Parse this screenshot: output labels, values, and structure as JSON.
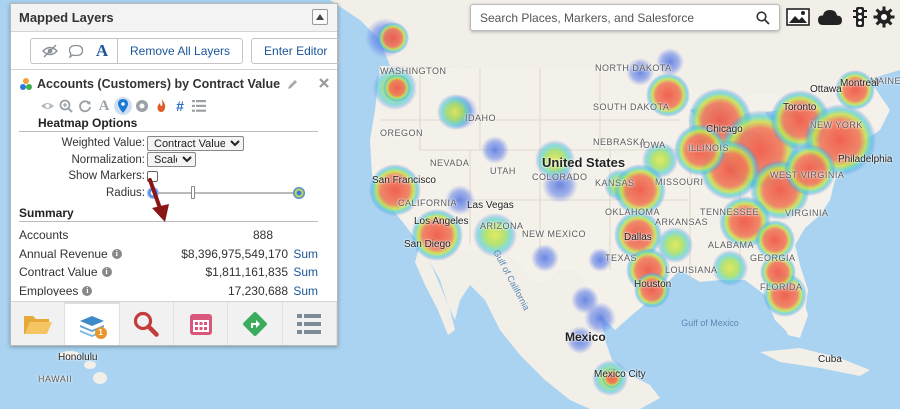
{
  "map": {
    "labels": {
      "united_states": "United States",
      "mexico": "Mexico",
      "washington": "WASHINGTON",
      "oregon": "OREGON",
      "idaho": "IDAHO",
      "north_dakota": "NORTH DAKOTA",
      "south_dakota": "SOUTH DAKOTA",
      "nebraska": "NEBRASKA",
      "nevada": "NEVADA",
      "utah": "UTAH",
      "colorado": "COLORADO",
      "california": "CALIFORNIA",
      "arizona": "ARIZONA",
      "new_mexico": "NEW MEXICO",
      "texas": "TEXAS",
      "oklahoma": "OKLAHOMA",
      "arkansas": "ARKANSAS",
      "missouri": "MISSOURI",
      "illinois": "ILLINOIS",
      "tennessee": "TENNESSEE",
      "alabama": "ALABAMA",
      "louisiana": "LOUISIANA",
      "georgia": "GEORGIA",
      "florida": "FLORIDA",
      "west_virginia": "WEST VIRGINIA",
      "virginia": "VIRGINIA",
      "new_york": "NEW YORK",
      "maine": "MAINE",
      "iowa": "IOWA",
      "kansas": "KANSAS",
      "san_francisco": "San Francisco",
      "los_angeles": "Los Angeles",
      "san_diego": "San Diego",
      "las_vegas": "Las Vegas",
      "dallas": "Dallas",
      "houston": "Houston",
      "chicago": "Chicago",
      "toronto": "Toronto",
      "montreal": "Montreal",
      "ottawa": "Ottawa",
      "philadelphia": "Philadelphia",
      "mexico_city": "Mexico City",
      "cuba": "Cuba",
      "honolulu": "Honolulu",
      "hawaii": "HAWAII",
      "gulf_california": "Gulf of California",
      "gulf_mexico": "Gulf of Mexico"
    }
  },
  "search": {
    "placeholder": "Search Places, Markers, and Salesforce"
  },
  "panel": {
    "title": "Mapped Layers",
    "toolbar": {
      "remove_all": "Remove All Layers",
      "enter_editor": "Enter Editor",
      "text_icon": "A"
    },
    "layer": {
      "name": "Accounts (Customers) by Contract Value",
      "heatmap": {
        "title": "Heatmap Options",
        "weighted_label": "Weighted Value:",
        "weighted_value": "Contract Value",
        "normalization_label": "Normalization:",
        "normalization_value": "Scaled",
        "show_markers_label": "Show Markers:",
        "radius_label": "Radius:",
        "radius_level": 0.27
      },
      "summary": {
        "title": "Summary",
        "rows": [
          {
            "label": "Accounts",
            "value": "888",
            "link": ""
          },
          {
            "label": "Annual Revenue",
            "value": "$8,396,975,549,170",
            "link": "Sum"
          },
          {
            "label": "Contract Value",
            "value": "$1,811,161,835",
            "link": "Sum"
          },
          {
            "label": "Employees",
            "value": "17,230,688",
            "link": "Sum"
          }
        ]
      }
    },
    "tabs": {
      "layers_badge": "1"
    }
  }
}
